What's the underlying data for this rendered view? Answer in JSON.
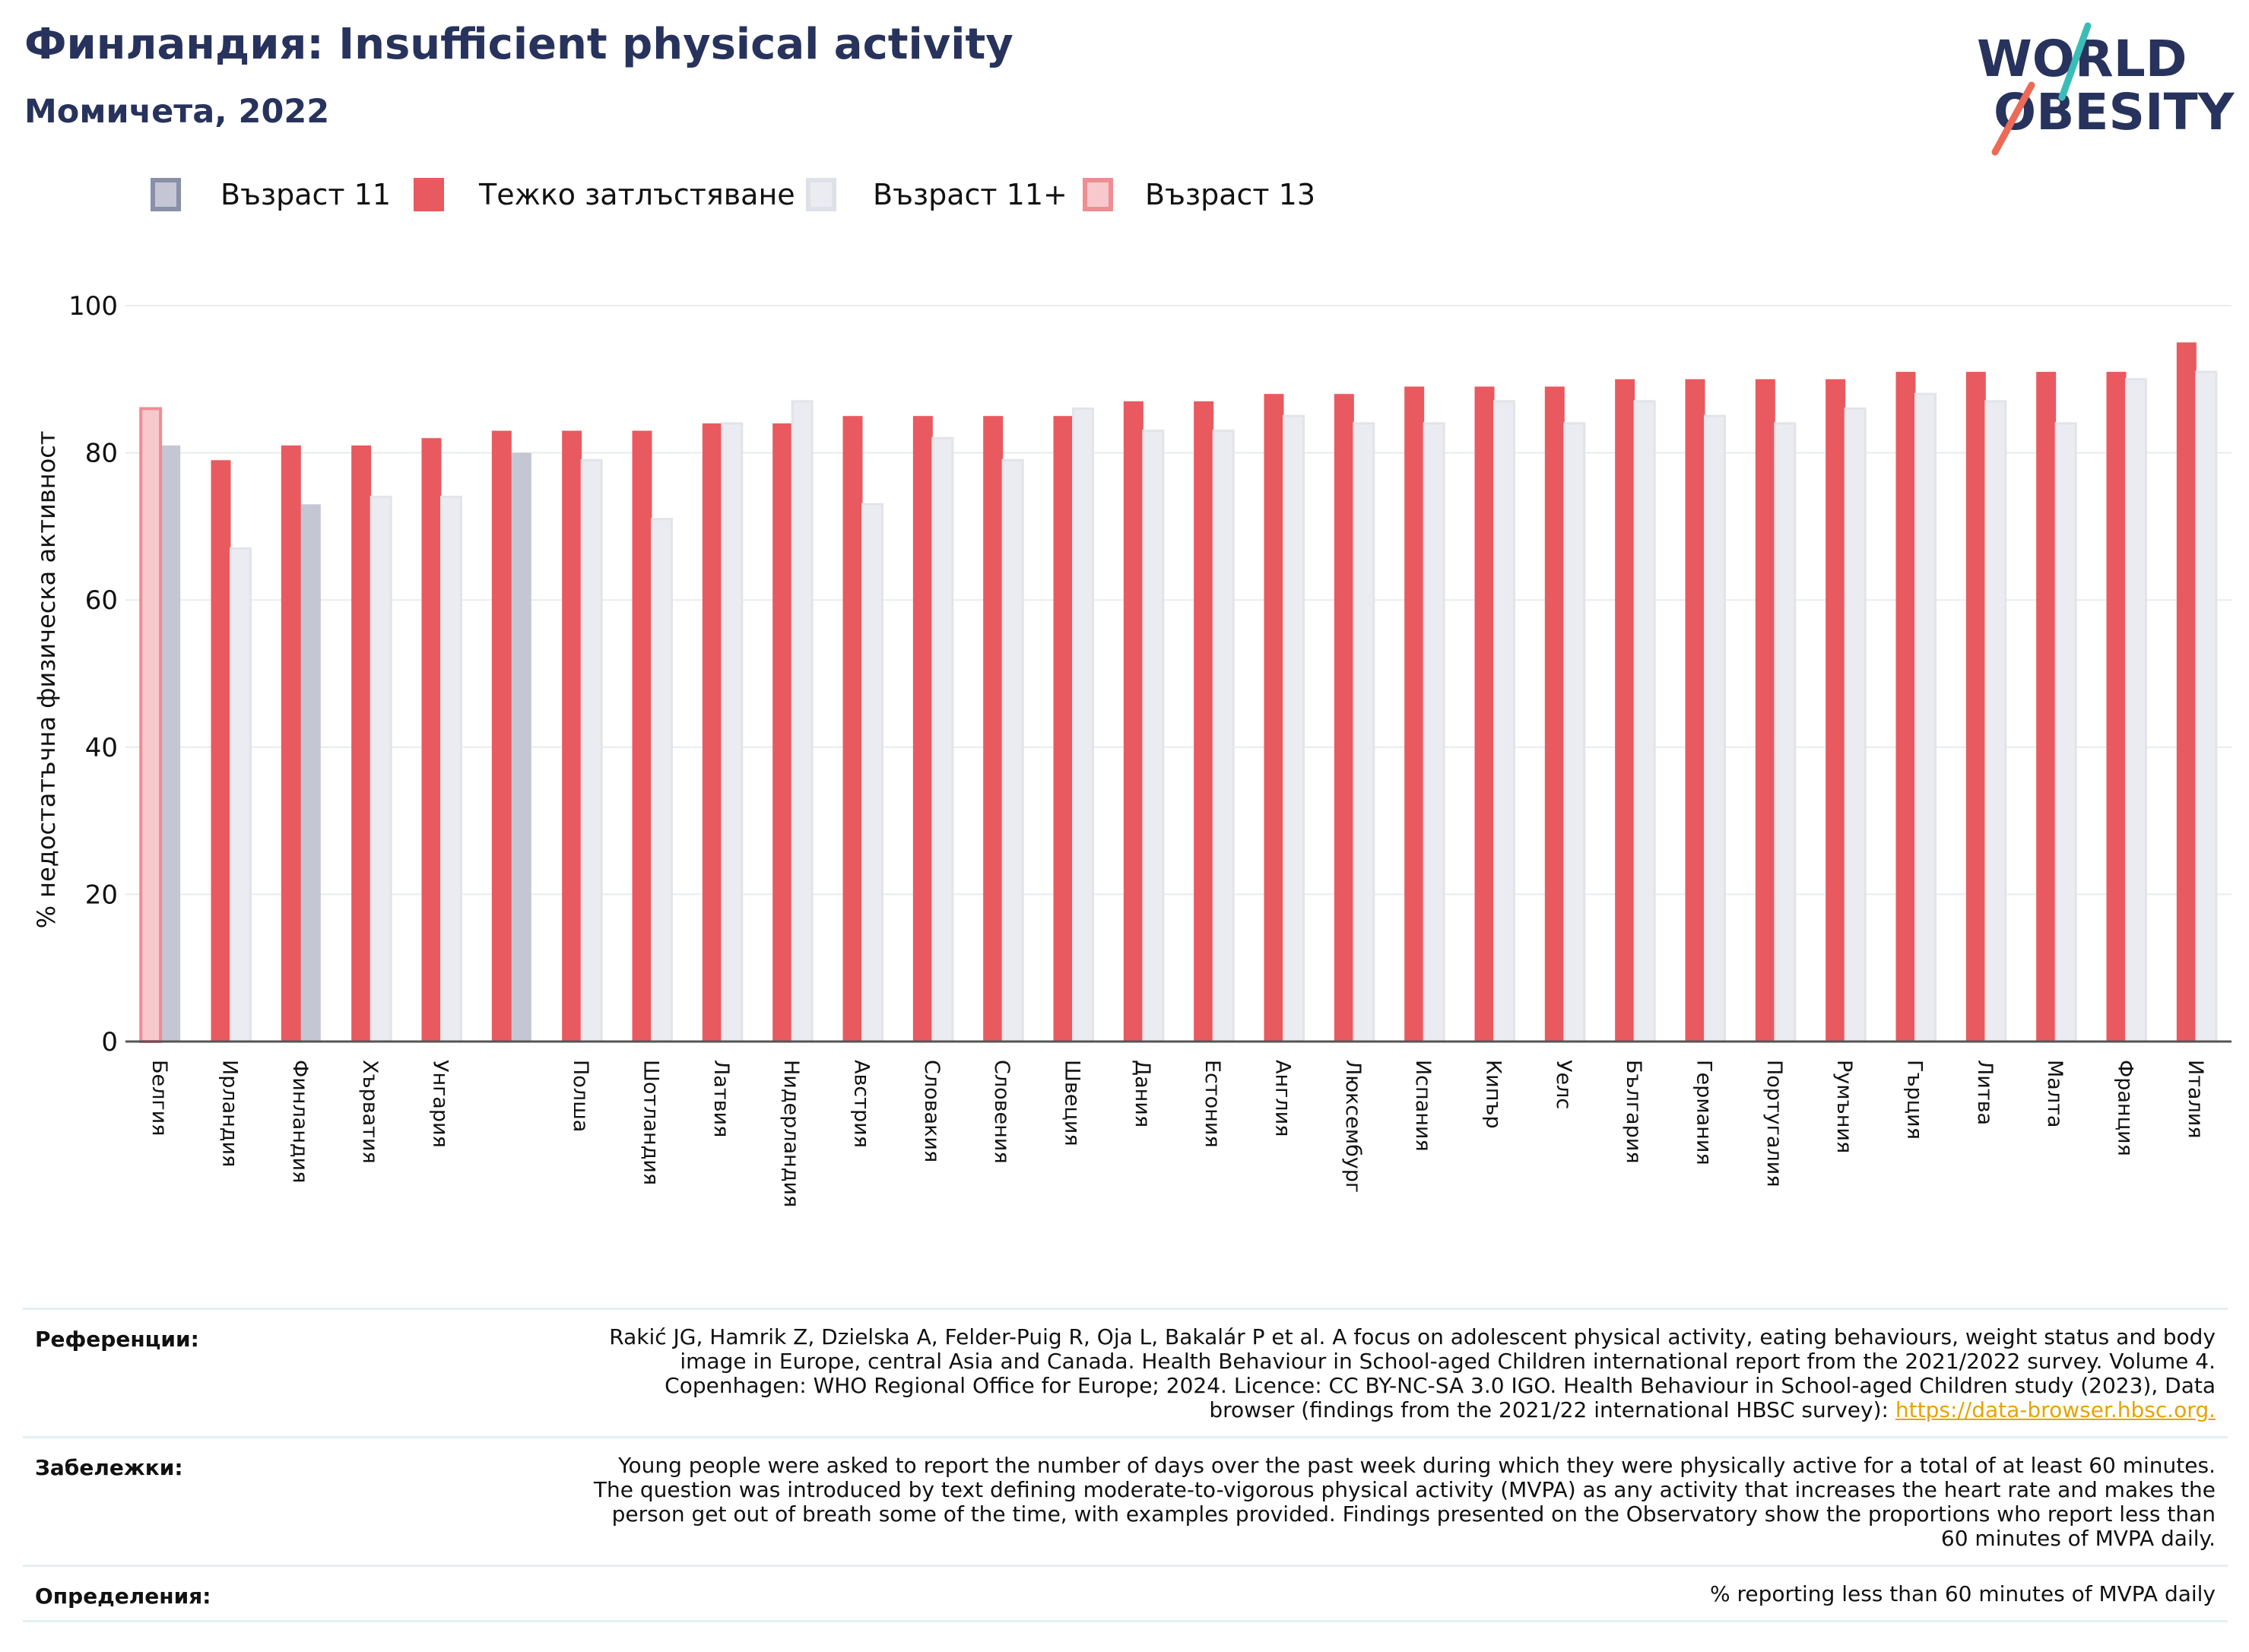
{
  "header": {
    "title": "Финландия: Insufficient physical activity",
    "subtitle": "Момичета, 2022"
  },
  "logo": {
    "line1": "WORLD",
    "line2": "OBESITY"
  },
  "colors": {
    "age11": "#c4c7d3",
    "age11_border": "#8a90a8",
    "obesity": "#e85a5f",
    "age11plus": "#ebecf1",
    "age13": "#f7c9cc",
    "age13_border": "#ef8d93",
    "title": "#27335c",
    "logo_teal": "#3bbdb7",
    "logo_coral": "#ec6a57"
  },
  "legend": [
    {
      "key": "age11",
      "label": "Възраст 11"
    },
    {
      "key": "obesity",
      "label": "Тежко затлъстяване"
    },
    {
      "key": "age11plus",
      "label": "Възраст 11+"
    },
    {
      "key": "age13",
      "label": "Възраст 13"
    }
  ],
  "chart_data": {
    "type": "bar",
    "ylabel": "% недостатъчна физическа активност",
    "xlabel": "",
    "ylim": [
      0,
      100
    ],
    "yticks": [
      0,
      20,
      40,
      60,
      80,
      100
    ],
    "grid": true,
    "legend_position": "top-left",
    "categories": [
      "Белгия",
      "Ирландия",
      "Финландия",
      "Хърватия",
      "Унгария",
      "",
      "Полша",
      "Шотландия",
      "Латвия",
      "Нидерландия",
      "Австрия",
      "Словакия",
      "Словения",
      "Швеция",
      "Дания",
      "Естония",
      "Англия",
      "Люксембург",
      "Испания",
      "Кипър",
      "Уелс",
      "България",
      "Германия",
      "Португалия",
      "Румъния",
      "Гърция",
      "Литва",
      "Малта",
      "Франция",
      "Италия"
    ],
    "series": [
      {
        "name": "Тежко затлъстяване",
        "key": "obesity",
        "values": [
          null,
          79,
          81,
          81,
          82,
          83,
          83,
          83,
          84,
          84,
          85,
          85,
          85,
          85,
          87,
          87,
          88,
          88,
          89,
          89,
          89,
          90,
          90,
          90,
          90,
          91,
          91,
          91,
          91,
          95
        ]
      },
      {
        "name": "Възраст 11+",
        "key": "age11plus",
        "values": [
          null,
          67,
          null,
          74,
          74,
          null,
          79,
          71,
          84,
          87,
          73,
          82,
          79,
          86,
          83,
          83,
          85,
          84,
          84,
          87,
          84,
          87,
          85,
          84,
          86,
          88,
          87,
          84,
          90,
          91
        ]
      },
      {
        "name": "Възраст 11",
        "key": "age11",
        "values": [
          81,
          null,
          73,
          null,
          null,
          80,
          null,
          null,
          null,
          null,
          null,
          null,
          null,
          null,
          null,
          null,
          null,
          null,
          null,
          null,
          null,
          null,
          null,
          null,
          null,
          null,
          null,
          null,
          null,
          null
        ]
      },
      {
        "name": "Възраст 13",
        "key": "age13",
        "values": [
          86,
          null,
          null,
          null,
          null,
          null,
          null,
          null,
          null,
          null,
          null,
          null,
          null,
          null,
          null,
          null,
          null,
          null,
          null,
          null,
          null,
          null,
          null,
          null,
          null,
          null,
          null,
          null,
          null,
          null
        ]
      }
    ]
  },
  "notes": {
    "references_label": "Референции:",
    "references_text": "Rakić JG, Hamrik Z, Dzielska A, Felder-Puig R, Oja L, Bakalár P et al. A focus on adolescent physical activity, eating behaviours, weight status and body image in Europe, central Asia and Canada. Health Behaviour in School-aged Children international report from the 2021/2022 survey. Volume 4. Copenhagen: WHO Regional Office for Europe; 2024. Licence: CC BY-NC-SA 3.0 IGO. Health Behaviour in School-aged Children study (2023), Data browser (findings from the 2021/22 international HBSC survey):",
    "references_link": "https://data-browser.hbsc.org.",
    "remarks_label": "Забележки:",
    "remarks_text": "Young people were asked to report the number of days over the past week during which they were physically active for a total of at least 60 minutes. The question was introduced by text defining moderate-to-vigorous physical activity (MVPA) as any activity that increases the heart rate and makes the person get out of breath some of the time, with examples provided. Findings presented on the Observatory show the proportions who report less than 60 minutes of MVPA daily.",
    "definitions_label": "Определения:",
    "definitions_text": "% reporting less than 60 minutes of MVPA daily"
  }
}
